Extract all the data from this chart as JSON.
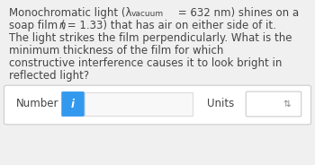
{
  "bg_color": "#f0f0f0",
  "text_color": "#444444",
  "line1_a": "Monochromatic light (λ",
  "line1_sub": "vacuum",
  "line1_b": " = 632 nm) shines on a",
  "line2_a": "soap film (",
  "line2_n": "n",
  "line2_b": " = 1.33) that has air on either side of it.",
  "line3": "The light strikes the film perpendicularly. What is the",
  "line4": "minimum thickness of the film for which",
  "line5": "constructive interference causes it to look bright in",
  "line6": "reflected light?",
  "input_box_color": "#ffffff",
  "input_box_border": "#cccccc",
  "info_btn_color": "#3399ee",
  "info_btn_text": "i",
  "number_label": "Number",
  "units_label": "Units",
  "units_box_border": "#cccccc",
  "arrow_color": "#888888",
  "font_size": 8.5,
  "sub_font_size": 6.5
}
